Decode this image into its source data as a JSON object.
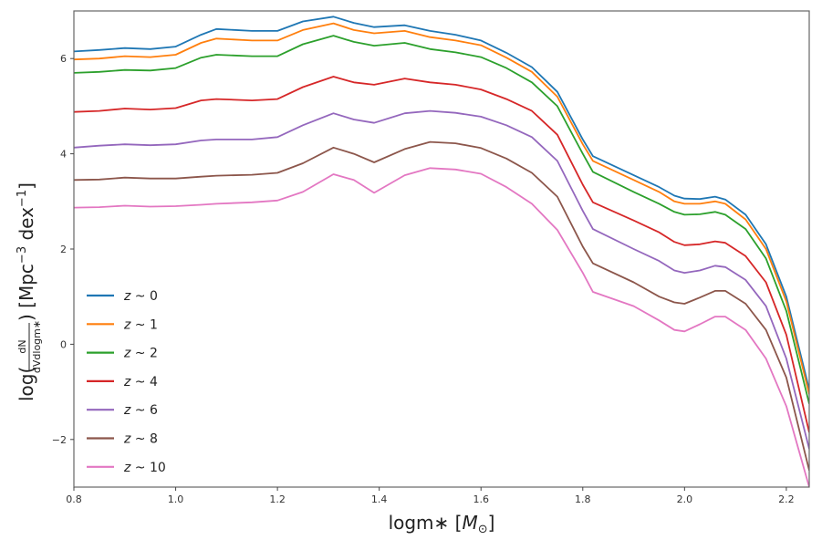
{
  "chart_data": {
    "type": "line",
    "title": "",
    "xlabel": "logm∗ [M⊙]",
    "xlabel_parts": {
      "main": "logm∗ [",
      "msym": "M",
      "sun": "⊙",
      "end": "]"
    },
    "ylabel": "log(dN / dVdlogm∗) [Mpc⁻³ dex⁻¹]",
    "ylabel_parts": {
      "pre": "log(",
      "num": "dN",
      "den": "dVdlogm∗",
      "post": ") [Mpc",
      "exp1": "−3",
      "mid": " dex",
      "exp2": "−1",
      "end": "]"
    },
    "xlim": [
      0.8,
      2.245
    ],
    "ylim": [
      -3.0,
      7.0
    ],
    "xticks": [
      "0.8",
      "1.0",
      "1.2",
      "1.4",
      "1.6",
      "1.8",
      "2.0",
      "2.2"
    ],
    "yticks": [
      "−2",
      "0",
      "2",
      "4",
      "6"
    ],
    "grid": false,
    "legend_placement": "lower-left",
    "x": [
      0.8,
      0.85,
      0.9,
      0.95,
      1.0,
      1.05,
      1.08,
      1.15,
      1.2,
      1.25,
      1.31,
      1.35,
      1.39,
      1.45,
      1.5,
      1.55,
      1.6,
      1.65,
      1.7,
      1.75,
      1.8,
      1.82,
      1.9,
      1.95,
      1.98,
      2.0,
      2.03,
      2.06,
      2.08,
      2.12,
      2.16,
      2.2,
      2.245
    ],
    "series": [
      {
        "name": "z ~ 0",
        "color": "#1f77b4",
        "values": [
          6.15,
          6.18,
          6.22,
          6.2,
          6.25,
          6.5,
          6.62,
          6.58,
          6.58,
          6.78,
          6.88,
          6.75,
          6.66,
          6.7,
          6.58,
          6.5,
          6.38,
          6.12,
          5.82,
          5.3,
          4.3,
          3.95,
          3.55,
          3.3,
          3.12,
          3.06,
          3.05,
          3.1,
          3.04,
          2.72,
          2.1,
          1.0,
          -0.95
        ]
      },
      {
        "name": "z ~ 1",
        "color": "#ff7f0e",
        "values": [
          5.98,
          6.0,
          6.05,
          6.03,
          6.08,
          6.33,
          6.42,
          6.38,
          6.38,
          6.6,
          6.74,
          6.6,
          6.53,
          6.58,
          6.45,
          6.38,
          6.28,
          6.02,
          5.72,
          5.2,
          4.2,
          3.85,
          3.45,
          3.2,
          3.0,
          2.95,
          2.95,
          3.0,
          2.95,
          2.62,
          2.0,
          0.9,
          -1.05
        ]
      },
      {
        "name": "z ~ 2",
        "color": "#2ca02c",
        "values": [
          5.7,
          5.72,
          5.76,
          5.75,
          5.8,
          6.02,
          6.08,
          6.05,
          6.05,
          6.3,
          6.48,
          6.35,
          6.27,
          6.33,
          6.2,
          6.13,
          6.03,
          5.8,
          5.5,
          5.0,
          4.0,
          3.62,
          3.2,
          2.95,
          2.78,
          2.72,
          2.73,
          2.78,
          2.72,
          2.42,
          1.8,
          0.7,
          -1.25
        ]
      },
      {
        "name": "z ~ 4",
        "color": "#d62728",
        "values": [
          4.88,
          4.9,
          4.95,
          4.93,
          4.96,
          5.12,
          5.15,
          5.12,
          5.15,
          5.4,
          5.62,
          5.5,
          5.45,
          5.58,
          5.5,
          5.45,
          5.35,
          5.15,
          4.9,
          4.4,
          3.35,
          2.98,
          2.6,
          2.35,
          2.15,
          2.08,
          2.1,
          2.16,
          2.13,
          1.85,
          1.3,
          0.2,
          -1.85
        ]
      },
      {
        "name": "z ~ 6",
        "color": "#9467bd",
        "values": [
          4.13,
          4.17,
          4.2,
          4.18,
          4.2,
          4.28,
          4.3,
          4.3,
          4.35,
          4.6,
          4.85,
          4.72,
          4.65,
          4.85,
          4.9,
          4.86,
          4.78,
          4.6,
          4.35,
          3.85,
          2.8,
          2.42,
          2.0,
          1.75,
          1.55,
          1.5,
          1.55,
          1.65,
          1.62,
          1.35,
          0.8,
          -0.3,
          -2.2
        ]
      },
      {
        "name": "z ~ 8",
        "color": "#8c564b",
        "values": [
          3.45,
          3.46,
          3.5,
          3.48,
          3.48,
          3.52,
          3.54,
          3.56,
          3.6,
          3.8,
          4.13,
          4.0,
          3.82,
          4.1,
          4.25,
          4.22,
          4.12,
          3.9,
          3.6,
          3.1,
          2.05,
          1.7,
          1.3,
          1.0,
          0.88,
          0.85,
          0.98,
          1.12,
          1.12,
          0.85,
          0.3,
          -0.7,
          -2.65
        ]
      },
      {
        "name": "z ~ 10",
        "color": "#e377c2",
        "values": [
          2.87,
          2.88,
          2.91,
          2.89,
          2.9,
          2.93,
          2.95,
          2.98,
          3.02,
          3.2,
          3.57,
          3.45,
          3.18,
          3.55,
          3.7,
          3.67,
          3.58,
          3.3,
          2.95,
          2.4,
          1.5,
          1.1,
          0.8,
          0.5,
          0.3,
          0.27,
          0.42,
          0.58,
          0.58,
          0.3,
          -0.3,
          -1.3,
          -3.0
        ]
      }
    ]
  }
}
